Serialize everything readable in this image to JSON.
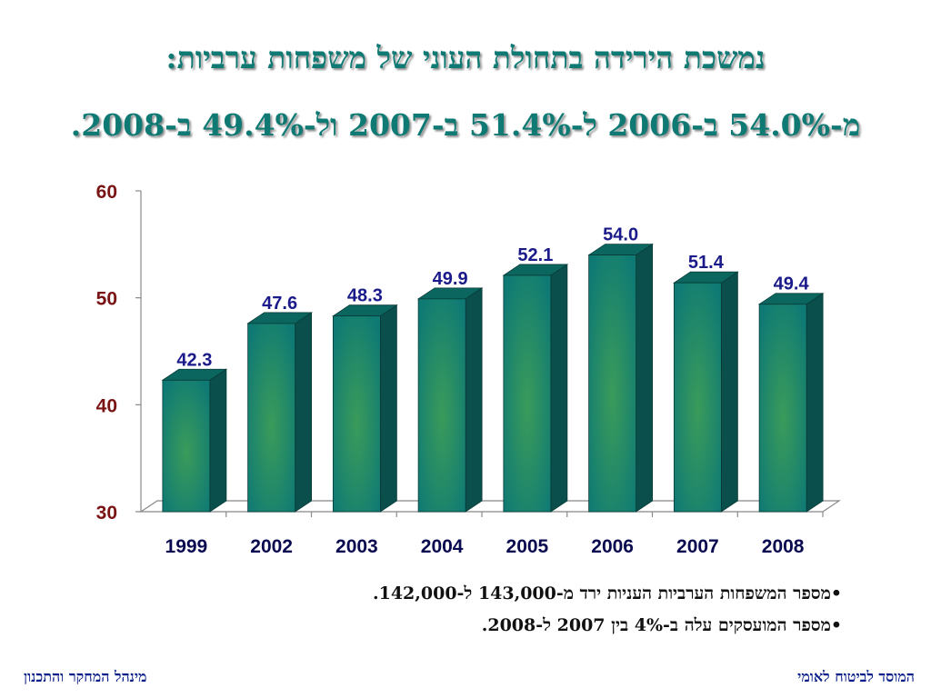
{
  "slide": {
    "title_line1": "נמשכת הירידה בתחולת העוני של משפחות ערביות:",
    "title_line2": "מ-54.0% ב-2006 ל-51.4% ב-2007 ול-49.4% ב-2008.",
    "bullets": [
      "•מספר המשפחות הערביות העניות ירד מ-143,000 ל-142,000.",
      "•מספר המועסקים עלה ב-4% בין 2007 ל-2008."
    ],
    "footer_right": "המוסד לביטוח לאומי",
    "footer_left": "מינהל המחקר והתכנון"
  },
  "chart_data": {
    "type": "bar",
    "categories": [
      "1999",
      "2002",
      "2003",
      "2004",
      "2005",
      "2006",
      "2007",
      "2008"
    ],
    "values": [
      42.3,
      47.6,
      48.3,
      49.9,
      52.1,
      54.0,
      51.4,
      49.4
    ],
    "data_labels": [
      "42.3",
      "47.6",
      "48.3",
      "49.9",
      "52.1",
      "54.0",
      "51.4",
      "49.4"
    ],
    "ylim": [
      30,
      60
    ],
    "y_ticks": [
      "30",
      "40",
      "50",
      "60"
    ],
    "title": "",
    "xlabel": "",
    "ylabel": "",
    "grid": false,
    "legend": false,
    "bar_color": "#0f7a74",
    "bar_highlight": "#3a9b5a",
    "tick_label_color": "#7a1414",
    "category_label_color": "#0a0a50",
    "data_label_color": "#1a1a8a"
  }
}
